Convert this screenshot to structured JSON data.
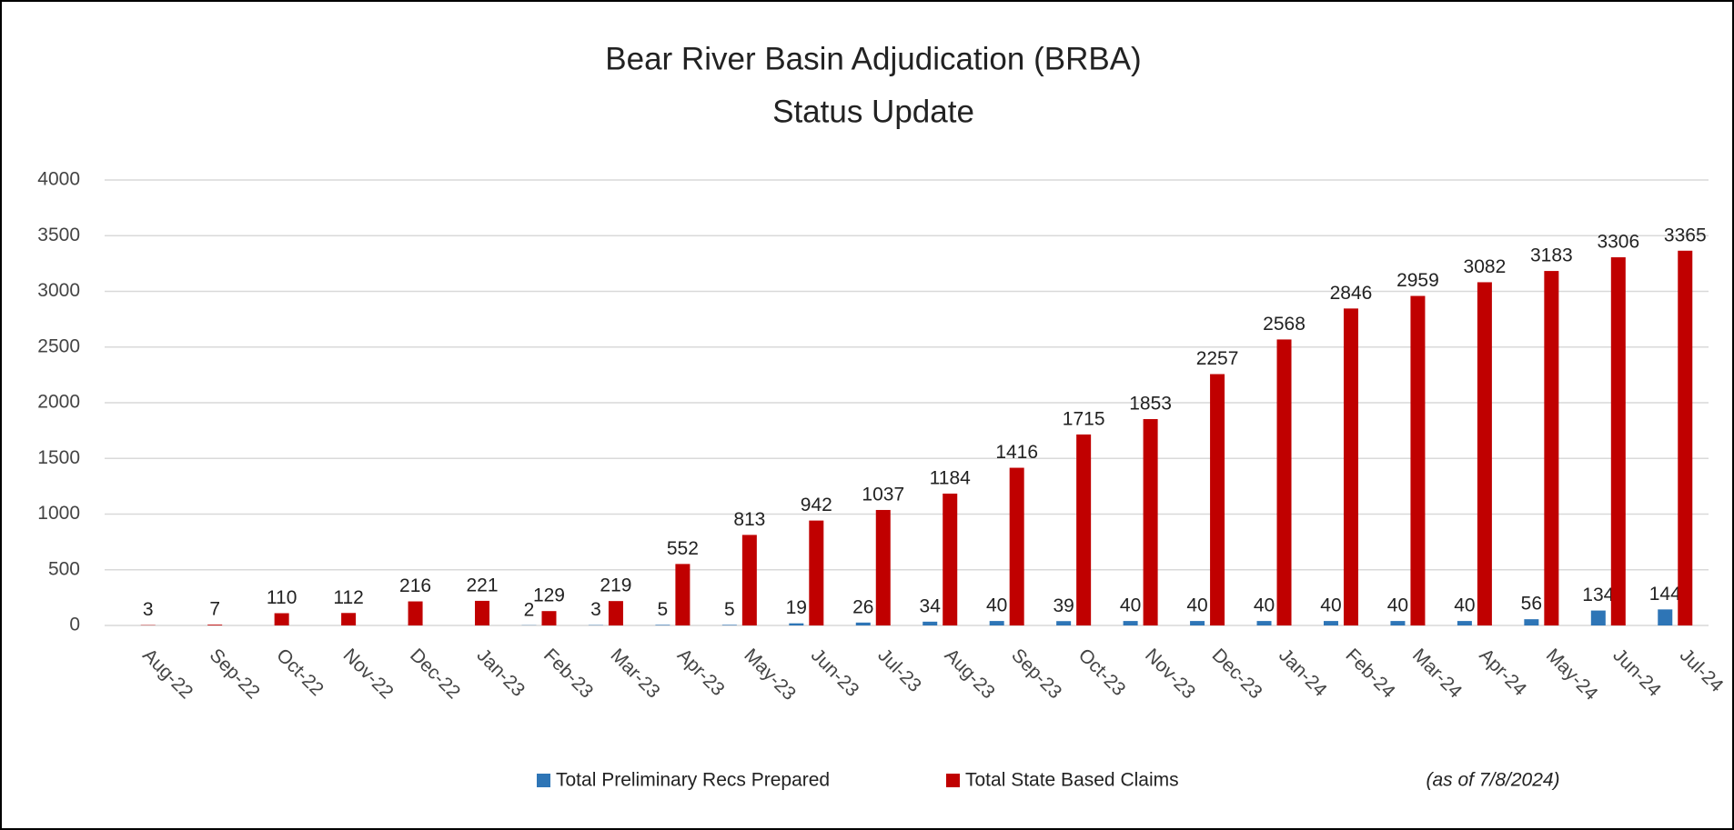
{
  "chart_data": {
    "type": "bar",
    "title": [
      "Bear River Basin Adjudication (BRBA)",
      "Status Update"
    ],
    "annotation": "(as of 7/8/2024)",
    "categories": [
      "Aug-22",
      "Sep-22",
      "Oct-22",
      "Nov-22",
      "Dec-22",
      "Jan-23",
      "Feb-23",
      "Mar-23",
      "Apr-23",
      "May-23",
      "Jun-23",
      "Jul-23",
      "Aug-23",
      "Sep-23",
      "Oct-23",
      "Nov-23",
      "Dec-23",
      "Jan-24",
      "Feb-24",
      "Mar-24",
      "Apr-24",
      "May-24",
      "Jun-24",
      "Jul-24"
    ],
    "series": [
      {
        "name": "Total Preliminary Recs Prepared",
        "color": "#2e75b6",
        "values": [
          null,
          null,
          0,
          0,
          0,
          0,
          2,
          3,
          5,
          5,
          19,
          26,
          34,
          40,
          39,
          40,
          40,
          40,
          40,
          40,
          40,
          56,
          134,
          144
        ],
        "value_labels": [
          null,
          null,
          null,
          null,
          null,
          null,
          "2",
          "3",
          "5",
          "5",
          "19",
          "26",
          "34",
          "40",
          "39",
          "40",
          "40",
          "40",
          "40",
          "40",
          "40",
          "56",
          "134",
          "144"
        ]
      },
      {
        "name": "Total State Based Claims",
        "color": "#c00000",
        "values": [
          3,
          7,
          110,
          112,
          216,
          221,
          129,
          219,
          552,
          813,
          942,
          1037,
          1184,
          1416,
          1715,
          1853,
          2257,
          2568,
          2846,
          2959,
          3082,
          3183,
          3306,
          3365
        ]
      }
    ],
    "ylim": [
      0,
      4000
    ],
    "yticks": [
      0,
      500,
      1000,
      1500,
      2000,
      2500,
      3000,
      3500,
      4000
    ],
    "grid": true,
    "legend": "bottom"
  }
}
